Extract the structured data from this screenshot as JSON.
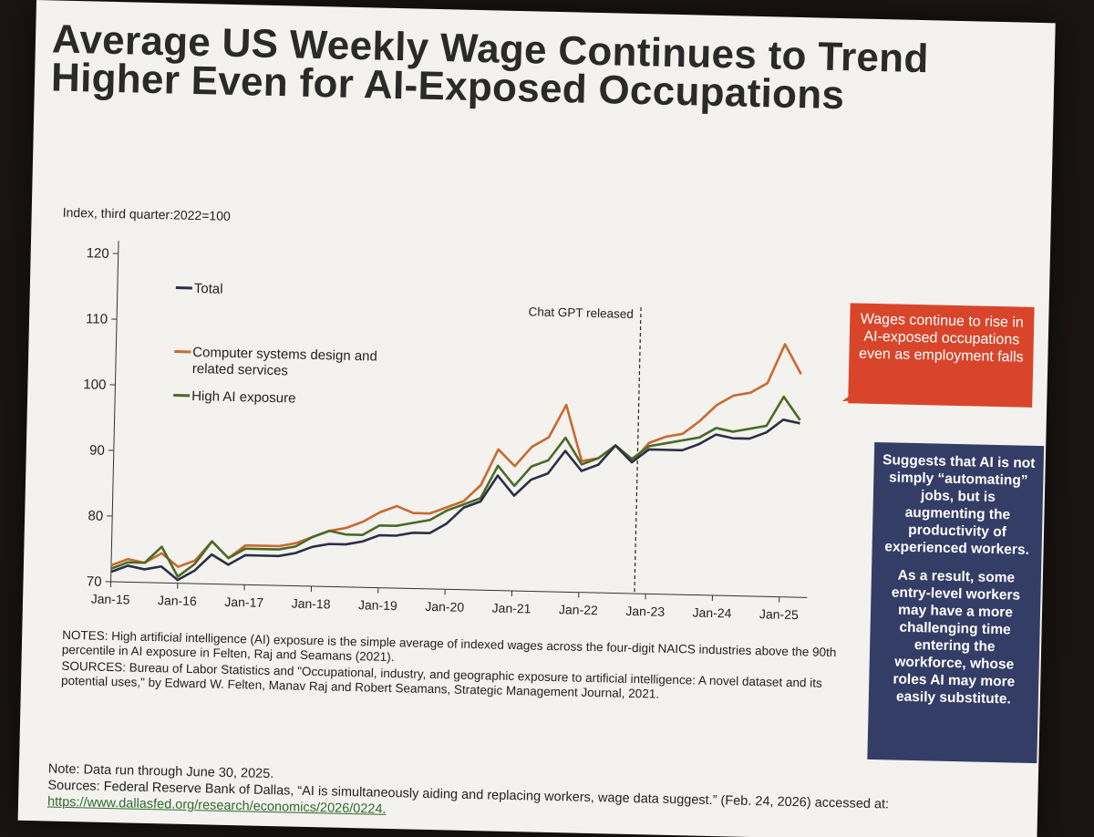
{
  "title": "Average US Weekly Wage Continues to Trend Higher Even for AI-Exposed Occupations",
  "ylabel": "Index, third quarter:2022=100",
  "callout_red": "Wages continue to rise in AI-exposed occupations even as employment falls",
  "callout_blue": {
    "para1": "Suggests that AI is not simply “automating” jobs, but is augmenting the productivity of experienced workers.",
    "para2": "As a result, some entry-level workers may have a more challenging time entering the workforce, whose roles AI may more easily substitute."
  },
  "notes": "NOTES: High artificial intelligence (AI) exposure is the simple average of indexed wages across the four-digit NAICS industries above the 90th percentile in AI exposure in Felten, Raj and Seamans (2021).",
  "sources": "SOURCES: Bureau of Labor Statistics and \"Occupational, industry, and geographic exposure to artificial intelligence: A novel dataset and its potential uses,\" by Edward W. Felten, Manav Raj and Robert Seamans, Strategic Management Journal, 2021.",
  "footer_note": "Note: Data run through June 30, 2025.",
  "footer_sources": "Sources: Federal Reserve Bank of Dallas, “AI is simultaneously aiding and replacing workers, wage data suggest.” (Feb. 24, 2026) accessed at:",
  "footer_url": "https://www.dallasfed.org/research/economics/2026/0224.",
  "colors": {
    "total": "#2b2f45",
    "computer": "#c86a30",
    "high_ai": "#4a6a28",
    "callout_red": "#d9452b",
    "callout_blue": "#343d66"
  },
  "chart_data": {
    "type": "line",
    "ylabel": "Index, third quarter:2022=100",
    "ylim": [
      70,
      120
    ],
    "yticks": [
      70,
      80,
      90,
      100,
      110,
      120
    ],
    "xlim": [
      "Jan-15",
      "Jun-25"
    ],
    "xtick_labels": [
      "Jan-15",
      "Jan-16",
      "Jan-17",
      "Jan-18",
      "Jan-19",
      "Jan-20",
      "Jan-21",
      "Jan-22",
      "Jan-23",
      "Jan-24",
      "Jan-25"
    ],
    "legend_position": "top-left",
    "annotation": {
      "label": "Chat GPT released",
      "x": "Nov-22"
    },
    "x": [
      "Jan-15",
      "Apr-15",
      "Jul-15",
      "Oct-15",
      "Jan-16",
      "Apr-16",
      "Jul-16",
      "Oct-16",
      "Jan-17",
      "Apr-17",
      "Jul-17",
      "Oct-17",
      "Jan-18",
      "Apr-18",
      "Jul-18",
      "Oct-18",
      "Jan-19",
      "Apr-19",
      "Jul-19",
      "Oct-19",
      "Jan-20",
      "Apr-20",
      "Jul-20",
      "Oct-20",
      "Jan-21",
      "Apr-21",
      "Jul-21",
      "Oct-21",
      "Jan-22",
      "Apr-22",
      "Jul-22",
      "Oct-22",
      "Jan-23",
      "Apr-23",
      "Jul-23",
      "Oct-23",
      "Jan-24",
      "Apr-24",
      "Jul-24",
      "Oct-24",
      "Jan-25",
      "Apr-25"
    ],
    "series": [
      {
        "name": "Total",
        "values": [
          71.5,
          72.5,
          72,
          72.5,
          70.5,
          72,
          74.5,
          73,
          74.5,
          74.5,
          74.5,
          75,
          76,
          76.5,
          76.5,
          77,
          78,
          78,
          78.5,
          78.5,
          80,
          82.5,
          83.5,
          87.5,
          84.5,
          87,
          88,
          91.5,
          88.5,
          89.5,
          92.5,
          90,
          92,
          92,
          92,
          93,
          94.5,
          94,
          94,
          95,
          97,
          96.5
        ]
      },
      {
        "name": "Computer systems design and related services",
        "values": [
          72.5,
          73.5,
          73,
          74.5,
          72.5,
          73.5,
          76.5,
          74,
          76,
          76,
          76,
          76.5,
          77.5,
          78.5,
          79,
          80,
          81.5,
          82.5,
          81.5,
          81.5,
          82.5,
          83.5,
          86,
          91.5,
          89,
          92,
          93.5,
          98.5,
          90,
          90.5,
          92.5,
          90,
          93,
          94,
          94.5,
          96.5,
          99,
          100.5,
          101,
          102.5,
          108.5,
          104
        ]
      },
      {
        "name": "High AI exposure",
        "values": [
          72,
          73,
          73,
          75.5,
          71,
          73,
          76.5,
          74,
          75.5,
          75.5,
          75.5,
          76,
          77.5,
          78.5,
          78,
          78,
          79.5,
          79.5,
          80,
          80.5,
          82,
          83,
          84,
          89,
          86,
          89,
          90,
          93.5,
          89.5,
          90.5,
          92.5,
          90.5,
          92.5,
          93,
          93.5,
          94,
          95.5,
          95,
          95.5,
          96,
          100.5,
          97
        ]
      }
    ]
  }
}
